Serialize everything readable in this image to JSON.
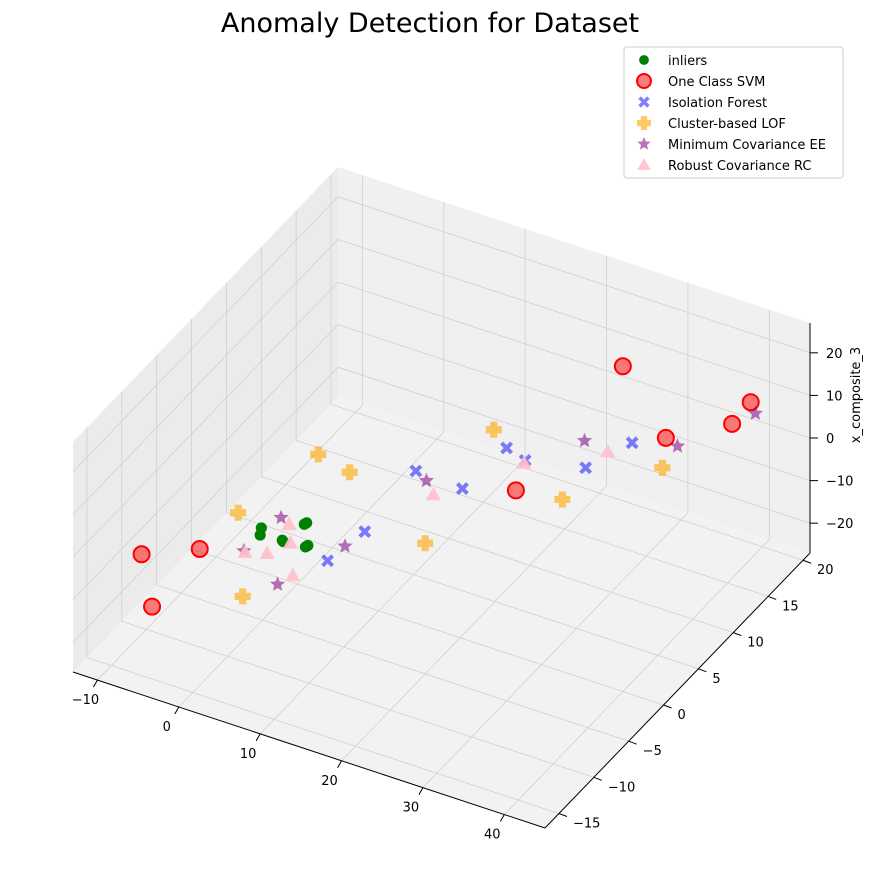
{
  "chart_data": {
    "type": "scatter",
    "projection": "3d",
    "title": "Anomaly Detection for Dataset",
    "xlabel": "",
    "ylabel": "",
    "zlabel": "x_composite_3",
    "xlim": [
      -13,
      45
    ],
    "ylim": [
      -17,
      21
    ],
    "zlim": [
      -27,
      27
    ],
    "x_ticks": [
      -10,
      0,
      10,
      20,
      30,
      40
    ],
    "y_ticks": [
      -15,
      -10,
      -5,
      0,
      5,
      10,
      15,
      20
    ],
    "z_ticks": [
      -20,
      -10,
      0,
      10,
      20
    ],
    "grid": true,
    "legend_placement": "top-right",
    "series": [
      {
        "name": "inliers",
        "marker": "circle",
        "color": "#008000",
        "points": [
          [
            5,
            -8,
            0
          ],
          [
            6,
            -9,
            2
          ],
          [
            4,
            -10,
            4
          ],
          [
            7,
            -7,
            -2
          ],
          [
            8,
            -8,
            6
          ],
          [
            5,
            -11,
            8
          ],
          [
            6,
            -6,
            1
          ],
          [
            9,
            -9,
            3
          ]
        ]
      },
      {
        "name": "One Class SVM",
        "marker": "circle-ring",
        "color": "#ff0000",
        "points": [
          [
            -8,
            -13,
            -3
          ],
          [
            42,
            16,
            15
          ],
          [
            35,
            12,
            9
          ],
          [
            0,
            -14,
            5
          ],
          [
            20,
            8,
            -6
          ],
          [
            28,
            14,
            18
          ],
          [
            -5,
            -15,
            -10
          ],
          [
            38,
            18,
            4
          ]
        ]
      },
      {
        "name": "Isolation Forest",
        "marker": "x",
        "color": "#0000ff",
        "points": [
          [
            12,
            3,
            2
          ],
          [
            16,
            5,
            -3
          ],
          [
            22,
            7,
            4
          ],
          [
            10,
            -2,
            -5
          ],
          [
            18,
            9,
            1
          ],
          [
            26,
            11,
            -2
          ],
          [
            8,
            -5,
            -8
          ],
          [
            30,
            13,
            3
          ]
        ]
      },
      {
        "name": "Cluster-based LOF",
        "marker": "plus",
        "color": "#ffa500",
        "points": [
          [
            3,
            -12,
            12
          ],
          [
            14,
            2,
            -12
          ],
          [
            9,
            -3,
            10
          ],
          [
            24,
            10,
            -9
          ],
          [
            1,
            -9,
            -14
          ],
          [
            19,
            6,
            11
          ],
          [
            32,
            15,
            -5
          ],
          [
            6,
            -4,
            14
          ]
        ]
      },
      {
        "name": "Minimum Covariance EE",
        "marker": "star",
        "color": "#800080",
        "points": [
          [
            2,
            -10,
            -1
          ],
          [
            7,
            -11,
            -4
          ],
          [
            4,
            -7,
            3
          ],
          [
            11,
            -6,
            -1
          ],
          [
            15,
            1,
            5
          ],
          [
            25,
            12,
            2
          ],
          [
            33,
            16,
            -1
          ],
          [
            40,
            19,
            6
          ]
        ]
      },
      {
        "name": "Robust Covariance RC",
        "marker": "triangle",
        "color": "#ffc0cb",
        "points": [
          [
            4,
            -9,
            -2
          ],
          [
            6,
            -8,
            0
          ],
          [
            3,
            -11,
            1
          ],
          [
            8,
            -10,
            -3
          ],
          [
            5,
            -7,
            2
          ],
          [
            15,
            2,
            0
          ],
          [
            21,
            8,
            1
          ],
          [
            27,
            13,
            -1
          ]
        ]
      }
    ]
  }
}
